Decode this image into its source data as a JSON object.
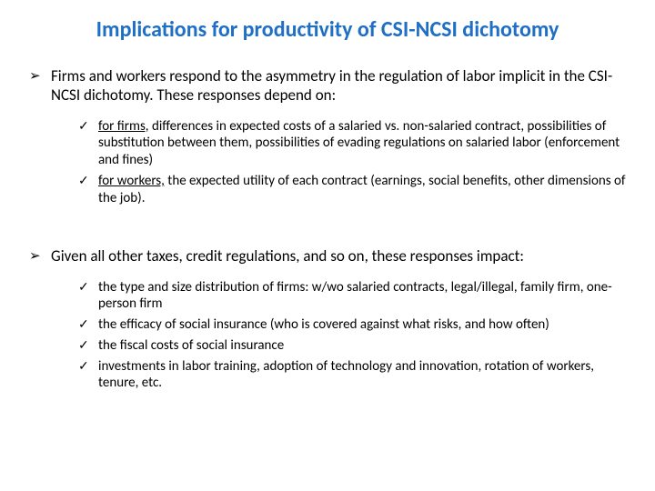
{
  "title": "Implications for productivity of CSI-NCSI dichotomy",
  "bullets": {
    "item1": {
      "text_a": "Firms and workers respond to the asymmetry in the regulation of labor implicit in the CSI-NCSI dichotomy. These responses depend on:",
      "sub1_prefix": "for firms,",
      "sub1_rest": " differences in expected costs of a salaried vs. non-salaried contract, possibilities of substitution between them, possibilities of evading regulations on salaried labor (enforcement and fines)",
      "sub2_prefix": "for workers,",
      "sub2_rest": " the expected utility of each contract (earnings, social benefits, other dimensions of the job)."
    },
    "item2": {
      "text_a": "Given all other taxes, credit regulations, and so on, these responses impact:",
      "sub1": "the type and size distribution of firms: w/wo salaried contracts, legal/illegal, family firm, one-person firm",
      "sub2": "the efficacy of social insurance (who is covered against what risks, and how often)",
      "sub3": "the fiscal costs of social insurance",
      "sub4": "investments in labor training, adoption of technology and innovation, rotation of workers, tenure, etc."
    }
  }
}
